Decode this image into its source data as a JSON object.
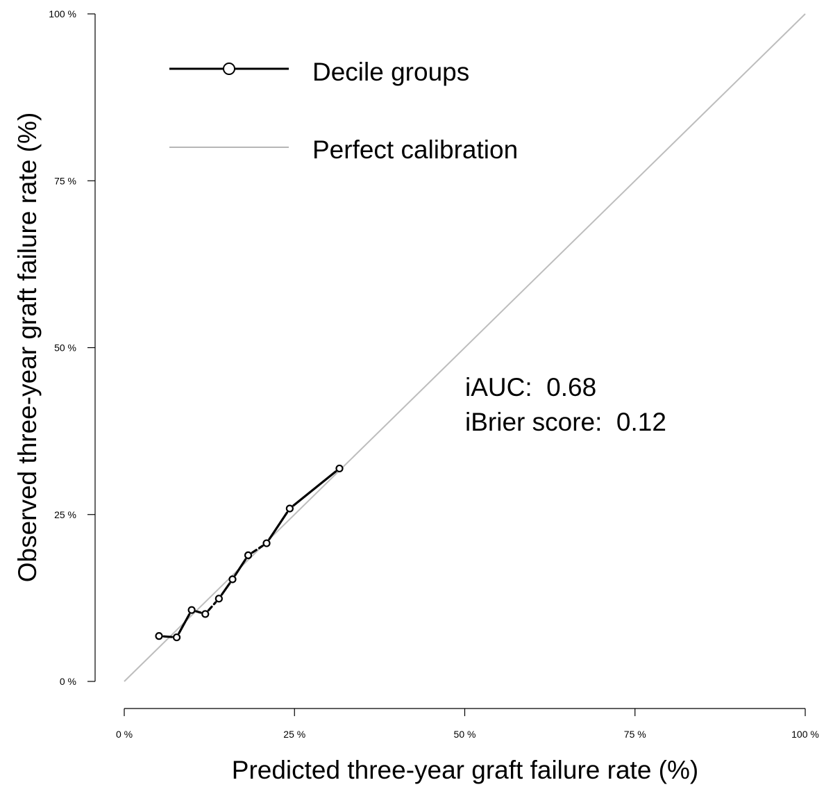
{
  "chart_data": {
    "type": "line",
    "xlabel": "Predicted three-year graft failure rate (%)",
    "ylabel": "Observed three-year graft failure rate (%)",
    "xlim": [
      0,
      100
    ],
    "ylim": [
      0,
      100
    ],
    "x_ticks": [
      0,
      25,
      50,
      75,
      100
    ],
    "y_ticks": [
      0,
      25,
      50,
      75,
      100
    ],
    "x_tick_labels": [
      "0 %",
      "25 %",
      "50 %",
      "75 %",
      "100 %"
    ],
    "y_tick_labels": [
      "0 %",
      "25 %",
      "50 %",
      "75 %",
      "100 %"
    ],
    "grid": false,
    "legend_position": "top-left",
    "series": [
      {
        "name": "Decile groups",
        "color": "#000000",
        "marker": "open-circle",
        "x": [
          5.1,
          7.7,
          9.9,
          11.9,
          13.9,
          15.9,
          18.2,
          20.9,
          24.3,
          31.6
        ],
        "y": [
          6.8,
          6.6,
          10.7,
          10.1,
          12.4,
          15.3,
          18.9,
          20.7,
          25.9,
          31.9
        ]
      },
      {
        "name": "Perfect calibration",
        "color": "#bdbdbd",
        "marker": "none",
        "x": [
          0,
          100
        ],
        "y": [
          0,
          100
        ]
      }
    ],
    "annotations": [
      "iAUC:  0.68",
      "iBrier score:  0.12"
    ]
  }
}
